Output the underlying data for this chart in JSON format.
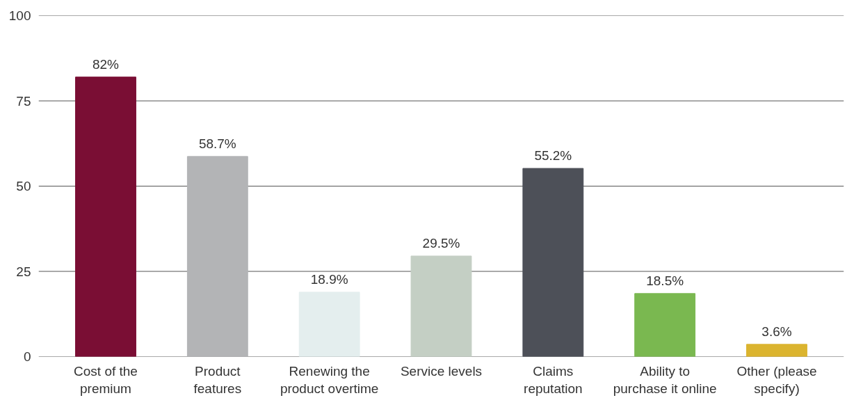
{
  "chart_data": {
    "type": "bar",
    "categories": [
      "Cost of the premium",
      "Product features",
      "Renewing the product overtime",
      "Service levels",
      "Claims reputation",
      "Ability to purchase it online",
      "Other (please specify)"
    ],
    "values": [
      82,
      58.7,
      18.9,
      29.5,
      55.2,
      18.5,
      3.6
    ],
    "colors": [
      "#7a0e34",
      "#b3b4b6",
      "#e4eeee",
      "#c4cfc4",
      "#4d5058",
      "#7ab850",
      "#dbb42f"
    ],
    "value_labels": [
      "82%",
      "58.7%",
      "18.9%",
      "29.5%",
      "55.2%",
      "18.5%",
      "3.6%"
    ],
    "ylim": [
      0,
      100
    ],
    "yticks": [
      0,
      25,
      50,
      75,
      100
    ],
    "grid": "y"
  }
}
